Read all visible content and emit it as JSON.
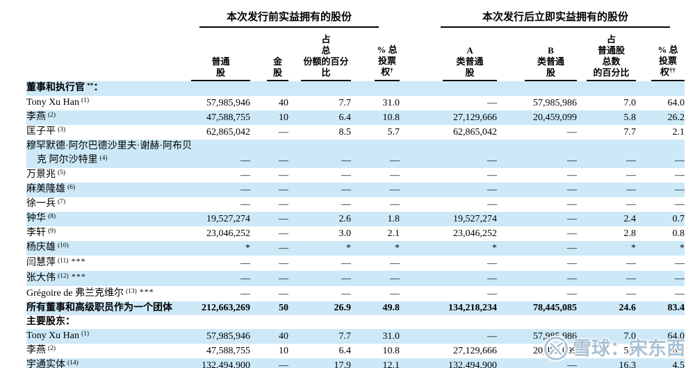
{
  "watermark": {
    "brand": "雪球",
    "separator": "：",
    "username": "宋东西"
  },
  "colors": {
    "row_band": "#cde9f7",
    "rule": "#000000",
    "watermark": "#a9c2d5"
  },
  "table": {
    "groups": [
      {
        "title": "本次发行前实益拥有的股份"
      },
      {
        "title": "本次发行后立即实益拥有的股份"
      }
    ],
    "columns": [
      {
        "lines": [
          "普通",
          "股"
        ],
        "sup": ""
      },
      {
        "lines": [
          "金",
          "股"
        ],
        "sup": ""
      },
      {
        "lines": [
          "占",
          "总",
          "份额的百分比"
        ],
        "sup": ""
      },
      {
        "lines": [
          "% 总",
          "投票",
          "权"
        ],
        "sup": "†"
      },
      {
        "lines": [
          "A",
          "类普通",
          "股"
        ],
        "sup": ""
      },
      {
        "lines": [
          "B",
          "类普通",
          "股"
        ],
        "sup": ""
      },
      {
        "lines": [
          "占",
          "普通股",
          "总数",
          "的百分比"
        ],
        "sup": ""
      },
      {
        "lines": [
          "% 总",
          "投票",
          "权"
        ],
        "sup": "††"
      }
    ],
    "rows": [
      {
        "kind": "section",
        "name": "董事和执行官",
        "sup": "**",
        "suffix": "：",
        "bold": true,
        "shaded": true
      },
      {
        "kind": "data",
        "name": "Tony Xu Han",
        "sup": "(1)",
        "stars": "",
        "shaded": false,
        "values": [
          "57,985,946",
          "40",
          "7.7",
          "31.0",
          "—",
          "57,985,986",
          "7.0",
          "64.0"
        ]
      },
      {
        "kind": "data",
        "name": "李燕",
        "sup": "(2)",
        "stars": "",
        "shaded": true,
        "values": [
          "47,588,755",
          "10",
          "6.4",
          "10.8",
          "27,129,666",
          "20,459,099",
          "5.8",
          "26.2"
        ]
      },
      {
        "kind": "data",
        "name": "匡子平",
        "sup": "(3)",
        "stars": "",
        "shaded": false,
        "values": [
          "62,865,042",
          "—",
          "8.5",
          "5.7",
          "62,865,042",
          "—",
          "7.7",
          "2.1"
        ]
      },
      {
        "kind": "data",
        "name": "穆罕默德·阿尔巴德沙里夫·谢赫·阿布贝",
        "name2": "克 阿尔沙特里",
        "sup": "(4)",
        "stars": "",
        "shaded": true,
        "values": [
          "—",
          "—",
          "—",
          "—",
          "—",
          "—",
          "—",
          "—"
        ]
      },
      {
        "kind": "data",
        "name": "万景兆",
        "sup": "(5)",
        "stars": "",
        "shaded": false,
        "values": [
          "—",
          "—",
          "—",
          "—",
          "—",
          "—",
          "—",
          "—"
        ]
      },
      {
        "kind": "data",
        "name": "麻美隆雄",
        "sup": "(6)",
        "stars": "",
        "shaded": true,
        "values": [
          "—",
          "—",
          "—",
          "—",
          "—",
          "—",
          "—",
          "—"
        ]
      },
      {
        "kind": "data",
        "name": "徐一兵",
        "sup": "(7)",
        "stars": "",
        "shaded": false,
        "values": [
          "—",
          "—",
          "—",
          "—",
          "—",
          "—",
          "—",
          "—"
        ]
      },
      {
        "kind": "data",
        "name": "钟华",
        "sup": "(8)",
        "stars": "",
        "shaded": true,
        "values": [
          "19,527,274",
          "—",
          "2.6",
          "1.8",
          "19,527,274",
          "—",
          "2.4",
          "0.7"
        ]
      },
      {
        "kind": "data",
        "name": "李轩",
        "sup": "(9)",
        "stars": "",
        "shaded": false,
        "values": [
          "23,046,252",
          "—",
          "3.0",
          "2.1",
          "23,046,252",
          "—",
          "2.8",
          "0.8"
        ]
      },
      {
        "kind": "data",
        "name": "杨庆雄",
        "sup": "(10)",
        "stars": "",
        "shaded": true,
        "values": [
          "*",
          "—",
          "*",
          "*",
          "*",
          "—",
          "*",
          "*"
        ]
      },
      {
        "kind": "data",
        "name": "闫慧萍",
        "sup": "(11)",
        "stars": "***",
        "shaded": false,
        "values": [
          "—",
          "—",
          "—",
          "—",
          "—",
          "—",
          "—",
          "—"
        ]
      },
      {
        "kind": "data",
        "name": "张大伟",
        "sup": "(12)",
        "stars": "***",
        "shaded": true,
        "values": [
          "—",
          "—",
          "—",
          "—",
          "—",
          "—",
          "—",
          "—"
        ]
      },
      {
        "kind": "data",
        "name": "Grégoire de 弗兰克维尔",
        "sup": "(13)",
        "stars": "***",
        "shaded": false,
        "values": [
          "—",
          "—",
          "—",
          "—",
          "—",
          "—",
          "—",
          "—"
        ]
      },
      {
        "kind": "data",
        "name": "所有董事和高级职员作为一个团体",
        "sup": "",
        "stars": "",
        "bold": true,
        "shaded": true,
        "values": [
          "212,663,269",
          "50",
          "26.9",
          "49.8",
          "134,218,234",
          "78,445,085",
          "24.6",
          "83.4"
        ]
      },
      {
        "kind": "section",
        "name": "主要股东",
        "sup": "",
        "suffix": "：",
        "bold": true,
        "shaded": false
      },
      {
        "kind": "data",
        "name": "Tony Xu Han",
        "sup": "(1)",
        "stars": "",
        "shaded": true,
        "values": [
          "57,985,946",
          "40",
          "7.7",
          "31.0",
          "—",
          "57,985,986",
          "7.0",
          "64.0"
        ]
      },
      {
        "kind": "data",
        "name": "李燕",
        "sup": "(2)",
        "stars": "",
        "shaded": false,
        "values": [
          "47,588,755",
          "10",
          "6.4",
          "10.8",
          "27,129,666",
          "20,459,099",
          "5.8",
          "26.2"
        ]
      },
      {
        "kind": "data",
        "name": "宇通实体",
        "sup": "(14)",
        "stars": "",
        "shaded": true,
        "values": [
          "132,494,900",
          "—",
          "17.9",
          "12.1",
          "132,494,900",
          "—",
          "16.3",
          "4.5"
        ]
      }
    ]
  }
}
